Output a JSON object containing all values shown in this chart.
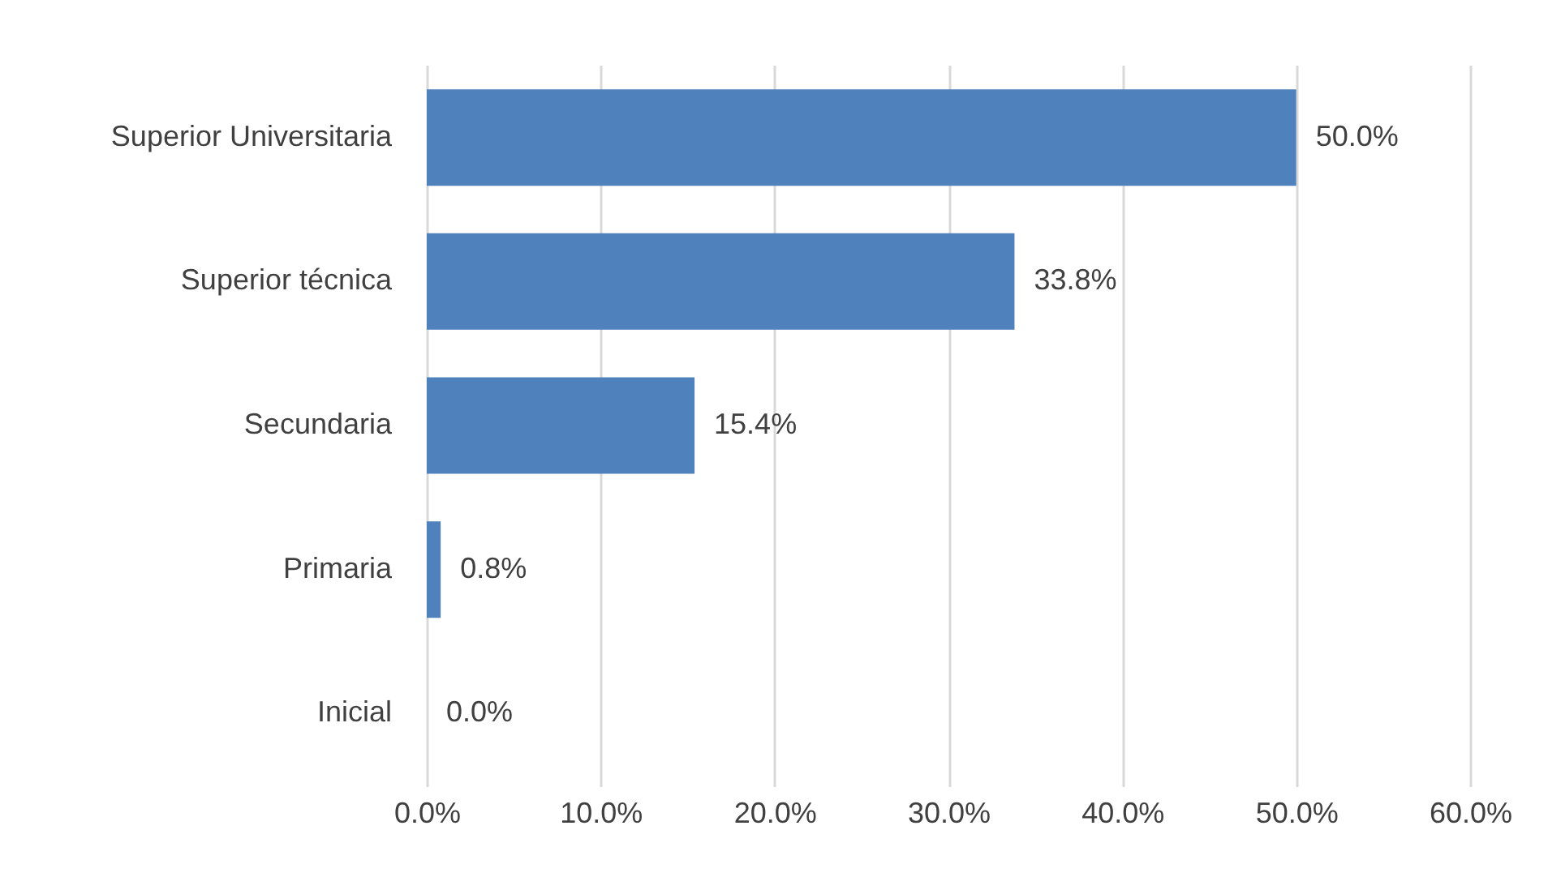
{
  "chart_data": {
    "type": "bar",
    "orientation": "horizontal",
    "categories": [
      "Superior Universitaria",
      "Superior técnica",
      "Secundaria",
      "Primaria",
      "Inicial"
    ],
    "values": [
      50.0,
      33.8,
      15.4,
      0.8,
      0.0
    ],
    "value_labels": [
      "50.0%",
      "33.8%",
      "15.4%",
      "0.8%",
      "0.0%"
    ],
    "color": "#4f81bd",
    "xlim": [
      0,
      60
    ],
    "xticks": [
      {
        "value": 0,
        "label": "0.0%"
      },
      {
        "value": 10,
        "label": "10.0%"
      },
      {
        "value": 20,
        "label": "20.0%"
      },
      {
        "value": 30,
        "label": "30.0%"
      },
      {
        "value": 40,
        "label": "40.0%"
      },
      {
        "value": 50,
        "label": "50.0%"
      },
      {
        "value": 60,
        "label": "60.0%"
      }
    ],
    "grid": "x"
  }
}
